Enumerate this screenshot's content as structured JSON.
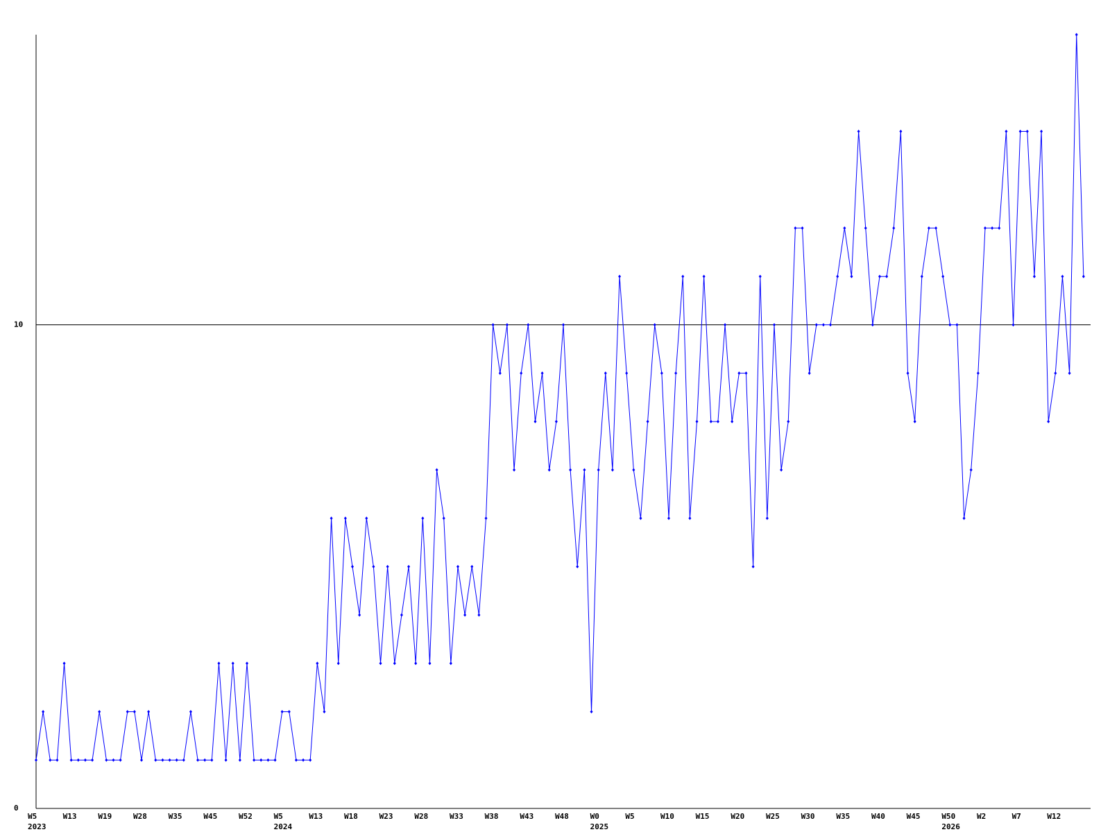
{
  "chart_data": {
    "type": "line",
    "color": "#0000ff",
    "categories": [
      "W5",
      null,
      null,
      null,
      null,
      "W13",
      null,
      null,
      null,
      null,
      "W19",
      null,
      null,
      null,
      null,
      "W28",
      null,
      null,
      null,
      null,
      "W35",
      null,
      null,
      null,
      null,
      "W45",
      null,
      null,
      null,
      null,
      "W52",
      null,
      null,
      null,
      null,
      "W5",
      null,
      null,
      null,
      null,
      "W13",
      null,
      null,
      null,
      null,
      "W18",
      null,
      null,
      null,
      null,
      "W23",
      null,
      null,
      null,
      null,
      "W28",
      null,
      null,
      null,
      null,
      "W33",
      null,
      null,
      null,
      null,
      "W38",
      null,
      null,
      null,
      null,
      "W43",
      null,
      null,
      null,
      null,
      "W48",
      null,
      null,
      null,
      null,
      "W0",
      null,
      null,
      null,
      null,
      "W5",
      null,
      null,
      null,
      null,
      "W10",
      null,
      null,
      null,
      null,
      "W15",
      null,
      null,
      null,
      null,
      "W20",
      null,
      null,
      null,
      null,
      "W25",
      null,
      null,
      null,
      null,
      "W30",
      null,
      null,
      null,
      null,
      "W35",
      null,
      null,
      null,
      null,
      "W40",
      null,
      null,
      null,
      null,
      "W45",
      null,
      null,
      null,
      null,
      "W50",
      null,
      null,
      null,
      null,
      "W2",
      null,
      null,
      null,
      null,
      "W7",
      null,
      null,
      null,
      null,
      "W12",
      null,
      null,
      null,
      null
    ],
    "years": [
      "2023",
      null,
      null,
      null,
      null,
      null,
      null,
      null,
      null,
      null,
      null,
      null,
      null,
      null,
      null,
      null,
      null,
      null,
      null,
      null,
      null,
      null,
      null,
      null,
      null,
      null,
      null,
      null,
      null,
      null,
      null,
      null,
      null,
      null,
      null,
      "2024",
      null,
      null,
      null,
      null,
      null,
      null,
      null,
      null,
      null,
      null,
      null,
      null,
      null,
      null,
      null,
      null,
      null,
      null,
      null,
      null,
      null,
      null,
      null,
      null,
      null,
      null,
      null,
      null,
      null,
      null,
      null,
      null,
      null,
      null,
      null,
      null,
      null,
      null,
      null,
      null,
      null,
      null,
      null,
      null,
      "2025",
      null,
      null,
      null,
      null,
      null,
      null,
      null,
      null,
      null,
      null,
      null,
      null,
      null,
      null,
      null,
      null,
      null,
      null,
      null,
      null,
      null,
      null,
      null,
      null,
      null,
      null,
      null,
      null,
      null,
      null,
      null,
      null,
      null,
      null,
      null,
      null,
      null,
      null,
      null,
      null,
      null,
      null,
      null,
      null,
      null,
      null,
      null,
      null,
      null,
      "2026",
      null,
      null,
      null,
      null,
      null,
      null,
      null,
      null,
      null,
      null,
      null,
      null,
      null,
      null
    ],
    "values": [
      1,
      2,
      1,
      1,
      3,
      1,
      1,
      1,
      1,
      2,
      1,
      1,
      1,
      2,
      2,
      1,
      2,
      1,
      1,
      1,
      1,
      1,
      2,
      1,
      1,
      1,
      3,
      1,
      3,
      1,
      3,
      1,
      1,
      1,
      1,
      2,
      2,
      1,
      1,
      1,
      3,
      2,
      6,
      3,
      6,
      5,
      4,
      6,
      5,
      3,
      5,
      3,
      4,
      5,
      3,
      6,
      3,
      7,
      6,
      3,
      5,
      4,
      5,
      4,
      6,
      10,
      9,
      10,
      7,
      9,
      10,
      8,
      9,
      7,
      8,
      10,
      7,
      5,
      7,
      2,
      7,
      9,
      7,
      11,
      9,
      7,
      6,
      8,
      10,
      9,
      6,
      9,
      11,
      6,
      8,
      11,
      8,
      8,
      10,
      8,
      9,
      9,
      5,
      11,
      6,
      10,
      7,
      8,
      12,
      12,
      9,
      10,
      10,
      10,
      11,
      12,
      11,
      14,
      12,
      10,
      11,
      11,
      12,
      14,
      9,
      8,
      11,
      12,
      12,
      11,
      10,
      10,
      6,
      7,
      9,
      12,
      12,
      12,
      14,
      10,
      14,
      14,
      11,
      14,
      8,
      9,
      11,
      9,
      16,
      11
    ],
    "ylim": [
      0,
      16
    ],
    "yticks": [
      0,
      10
    ],
    "grid": true
  }
}
